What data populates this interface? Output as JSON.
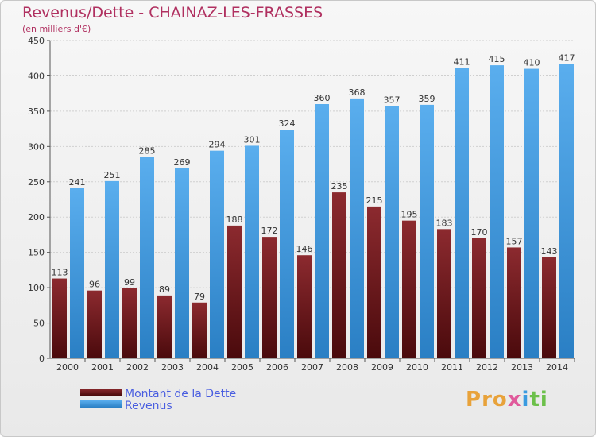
{
  "title": "Revenus/Dette - CHAINAZ-LES-FRASSES",
  "subtitle": "(en milliers d'€)",
  "logo": "Proxiti",
  "colors": {
    "dette": "#7a1e22",
    "revenus": "#3b9ee6",
    "title": "#b03060",
    "legend_text": "#4a5ee0"
  },
  "chart_data": {
    "type": "bar",
    "categories": [
      "2000",
      "2001",
      "2002",
      "2003",
      "2004",
      "2005",
      "2006",
      "2007",
      "2008",
      "2009",
      "2010",
      "2011",
      "2012",
      "2013",
      "2014"
    ],
    "series": [
      {
        "name": "Montant de la Dette",
        "values": [
          113,
          96,
          99,
          89,
          79,
          188,
          172,
          146,
          235,
          215,
          195,
          183,
          170,
          157,
          143
        ]
      },
      {
        "name": "Revenus",
        "values": [
          241,
          251,
          285,
          269,
          294,
          301,
          324,
          360,
          368,
          357,
          359,
          411,
          415,
          410,
          417
        ]
      }
    ],
    "ylim": [
      0,
      450
    ],
    "yticks": [
      0,
      50,
      100,
      150,
      200,
      250,
      300,
      350,
      400,
      450
    ],
    "grid": true,
    "legend": "bottom-left"
  }
}
